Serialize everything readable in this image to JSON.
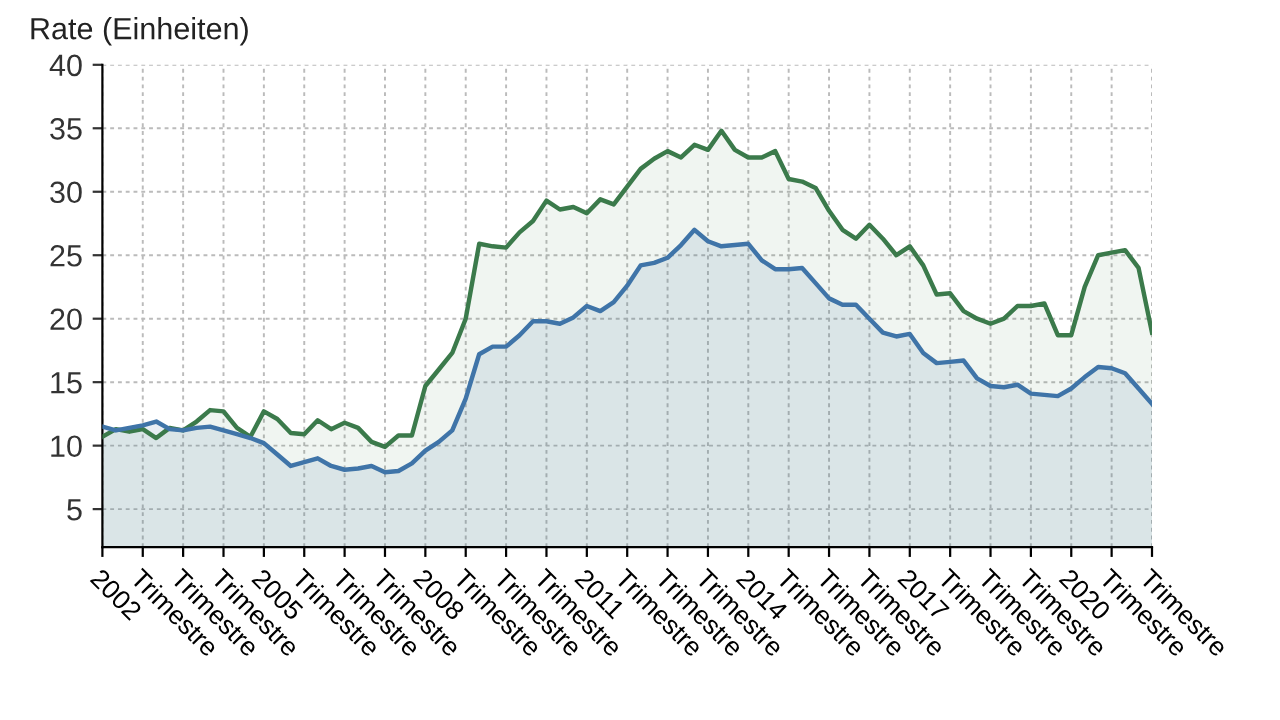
{
  "chart_data": {
    "type": "area",
    "ylabel": "Rate (Einheiten)",
    "categories": [
      "2002",
      null,
      null,
      "Trimestre",
      null,
      null,
      "Trimestre",
      null,
      null,
      "Trimestre",
      null,
      null,
      "2005",
      null,
      null,
      "Trimestre",
      null,
      null,
      "Trimestre",
      null,
      null,
      "Trimestre",
      null,
      null,
      "2008",
      null,
      null,
      "Trimestre",
      null,
      null,
      "Trimestre",
      null,
      null,
      "Trimestre",
      null,
      null,
      "2011",
      null,
      null,
      "Trimestre",
      null,
      null,
      "Trimestre",
      null,
      null,
      "Trimestre",
      null,
      null,
      "2014",
      null,
      null,
      "Trimestre",
      null,
      null,
      "Trimestre",
      null,
      null,
      "Trimestre",
      null,
      null,
      "2017",
      null,
      null,
      "Trimestre",
      null,
      null,
      "Trimestre",
      null,
      null,
      "Trimestre",
      null,
      null,
      "2020",
      null,
      null,
      "Trimestre",
      null,
      null,
      "Trimestre"
    ],
    "series": [
      {
        "color": "#3b7a4b",
        "values": [
          10.7,
          11.3,
          11.1,
          11.3,
          10.6,
          11.4,
          11.2,
          11.9,
          12.8,
          12.7,
          11.4,
          10.7,
          12.7,
          12.1,
          11.0,
          10.9,
          12.0,
          11.3,
          11.8,
          11.4,
          10.3,
          9.9,
          10.8,
          10.8,
          14.7,
          16.0,
          17.3,
          20.0,
          25.9,
          25.7,
          25.6,
          26.8,
          27.7,
          29.3,
          28.6,
          28.8,
          28.3,
          29.4,
          29.0,
          30.4,
          31.8,
          32.6,
          33.2,
          32.7,
          33.7,
          33.3,
          34.8,
          33.3,
          32.7,
          32.7,
          33.2,
          31.0,
          30.8,
          30.3,
          28.5,
          27.0,
          26.3,
          27.4,
          26.3,
          25.0,
          25.7,
          24.2,
          21.9,
          22.0,
          20.6,
          20.0,
          19.6,
          20.0,
          21.0,
          21.0,
          21.2,
          18.7,
          18.7,
          22.5,
          25.0,
          25.2,
          25.4,
          24.0,
          18.9
        ]
      },
      {
        "color": "#3f74a8",
        "values": [
          11.5,
          11.2,
          11.4,
          11.6,
          11.9,
          11.3,
          11.2,
          11.4,
          11.5,
          11.2,
          10.9,
          10.6,
          10.2,
          9.3,
          8.4,
          8.7,
          9.0,
          8.4,
          8.1,
          8.2,
          8.4,
          7.9,
          8.0,
          8.6,
          9.6,
          10.3,
          11.2,
          13.7,
          17.2,
          17.8,
          17.8,
          18.7,
          19.8,
          19.8,
          19.6,
          20.1,
          21.0,
          20.6,
          21.3,
          22.6,
          24.2,
          24.4,
          24.8,
          25.8,
          27.0,
          26.1,
          25.7,
          25.8,
          25.9,
          24.6,
          23.9,
          23.9,
          24.0,
          22.8,
          21.6,
          21.1,
          21.1,
          20.0,
          18.9,
          18.6,
          18.8,
          17.3,
          16.5,
          16.6,
          16.7,
          15.3,
          14.7,
          14.6,
          14.8,
          14.1,
          14.0,
          13.9,
          14.5,
          15.4,
          16.2,
          16.1,
          15.7,
          14.5,
          13.3
        ]
      }
    ],
    "ylim": [
      2,
      40
    ],
    "yticks": [
      5,
      10,
      15,
      20,
      25,
      30,
      35,
      40
    ],
    "grid": true,
    "line_style": "solid",
    "marker": "none"
  }
}
